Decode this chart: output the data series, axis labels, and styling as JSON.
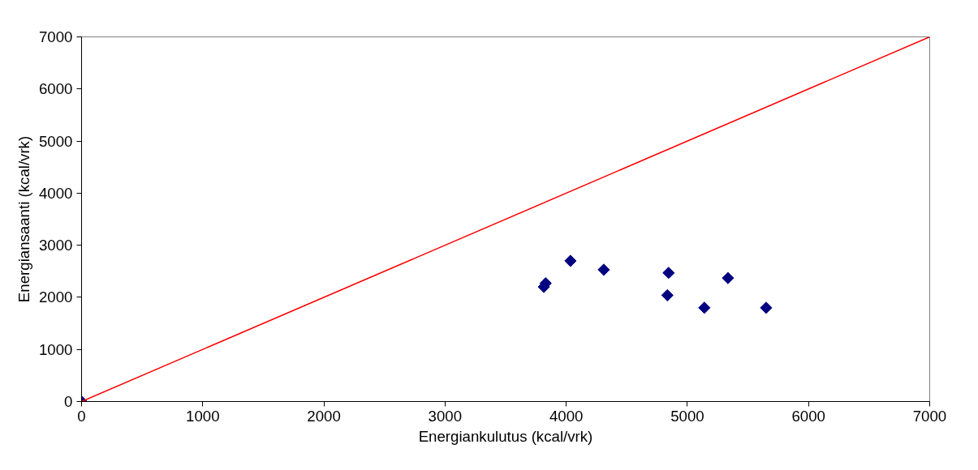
{
  "chart_data": {
    "type": "scatter",
    "xlabel": "Energiankulutus (kcal/vrk)",
    "ylabel": "Energiansaanti (kcal/vrk)",
    "xlim": [
      0,
      7000
    ],
    "ylim": [
      0,
      7000
    ],
    "xticks": [
      0,
      1000,
      2000,
      3000,
      4000,
      5000,
      6000,
      7000
    ],
    "yticks": [
      0,
      1000,
      2000,
      3000,
      4000,
      5000,
      6000,
      7000
    ],
    "grid": false,
    "marker": "diamond",
    "series": [
      {
        "color": "#000080",
        "x": [
          0,
          3815,
          3830,
          4035,
          4310,
          4845,
          4835,
          5140,
          5335,
          5650
        ],
        "values": [
          0,
          2200,
          2270,
          2700,
          2530,
          2470,
          2040,
          1800,
          2370,
          1800
        ]
      },
      {
        "type": "line",
        "color": "#ff0000",
        "marker": "none",
        "x": [
          0,
          7000
        ],
        "values": [
          0,
          7000
        ]
      }
    ]
  }
}
